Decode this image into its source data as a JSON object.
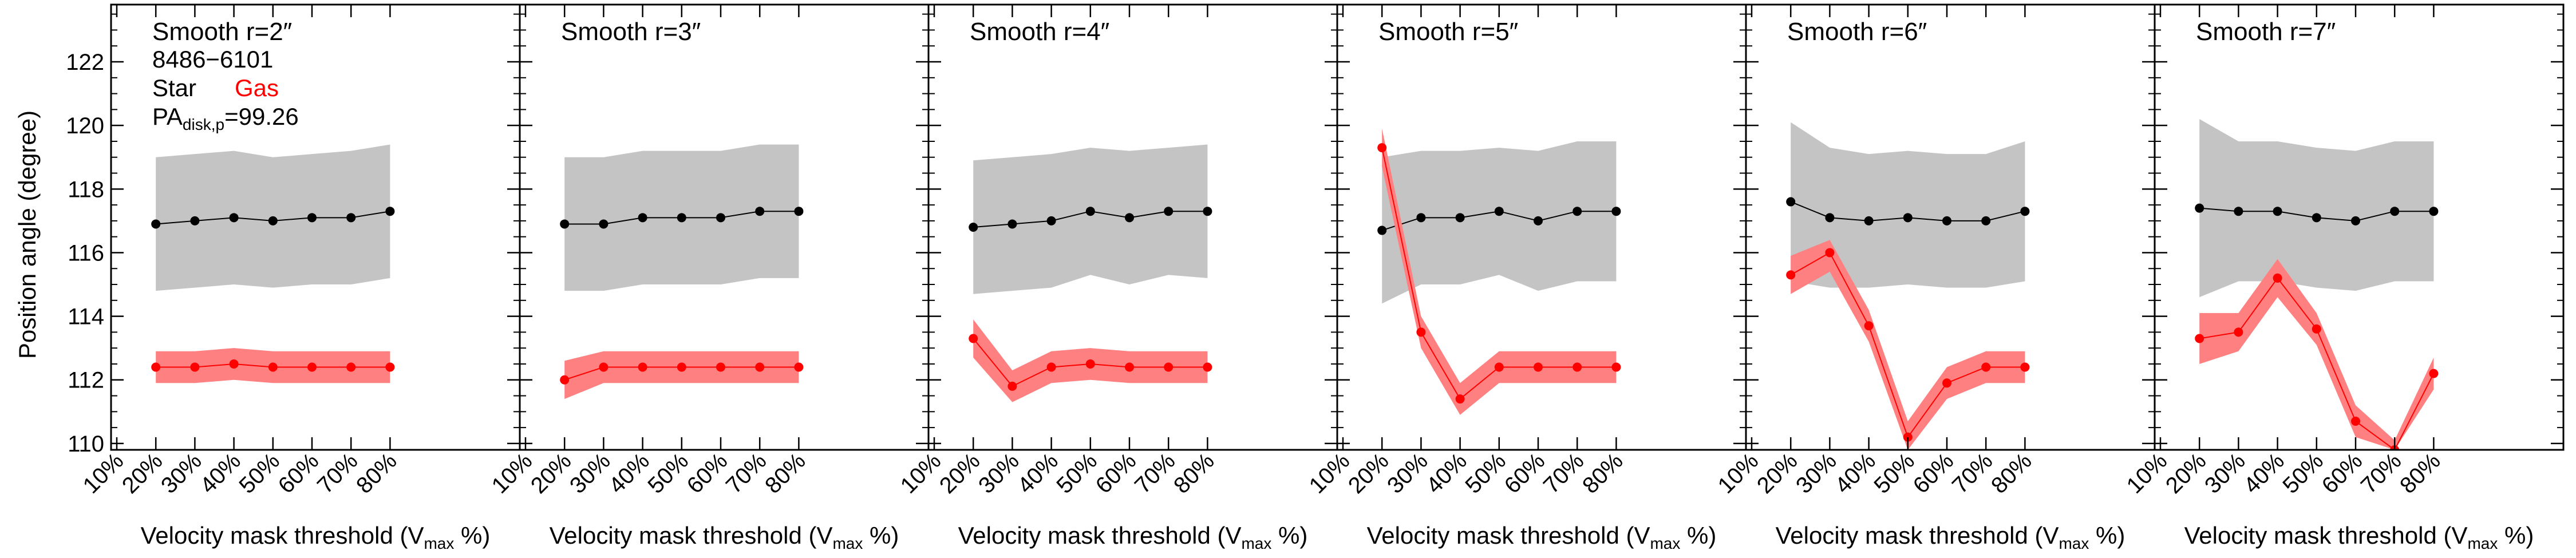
{
  "figure": {
    "ylabel": "Position angle (degree)",
    "info": {
      "object_id": "8486−6101",
      "star_label": "Star",
      "gas_label": "Gas",
      "pa_prefix": "PA",
      "pa_sub": "disk,p",
      "pa_value": "=99.26"
    },
    "xlabel_prefix": "Velocity mask threshold (V",
    "xlabel_sub": "max",
    "xlabel_suffix": " %)"
  },
  "colors": {
    "star_line": "#000000",
    "star_band": "#c4c4c4",
    "gas_line": "#ff0000",
    "gas_band": "#ff8080",
    "gas_label": "#ff0000"
  },
  "chart_data": [
    {
      "type": "line",
      "title": "Smooth r=2″",
      "categories": [
        "10%",
        "20%",
        "30%",
        "40%",
        "50%",
        "60%",
        "70%",
        "80%"
      ],
      "ylim": [
        109.8,
        123.8
      ],
      "yticks": [
        110,
        112,
        114,
        116,
        118,
        120,
        122
      ],
      "series": [
        {
          "name": "Star",
          "x": [
            20,
            30,
            40,
            50,
            60,
            70,
            80
          ],
          "values": [
            116.9,
            117.0,
            117.1,
            117.0,
            117.1,
            117.1,
            117.3
          ],
          "band_upper": [
            119.0,
            119.1,
            119.2,
            119.0,
            119.1,
            119.2,
            119.4
          ],
          "band_lower": [
            114.8,
            114.9,
            115.0,
            114.9,
            115.0,
            115.0,
            115.2
          ]
        },
        {
          "name": "Gas",
          "x": [
            20,
            30,
            40,
            50,
            60,
            70,
            80
          ],
          "values": [
            112.4,
            112.4,
            112.5,
            112.4,
            112.4,
            112.4,
            112.4
          ],
          "band_upper": [
            112.9,
            112.9,
            113.0,
            112.9,
            112.9,
            112.9,
            112.9
          ],
          "band_lower": [
            111.9,
            111.9,
            112.0,
            111.9,
            111.9,
            111.9,
            111.9
          ]
        }
      ]
    },
    {
      "type": "line",
      "title": "Smooth r=3″",
      "categories": [
        "10%",
        "20%",
        "30%",
        "40%",
        "50%",
        "60%",
        "70%",
        "80%"
      ],
      "ylim": [
        109.8,
        123.8
      ],
      "yticks": [
        110,
        112,
        114,
        116,
        118,
        120,
        122
      ],
      "series": [
        {
          "name": "Star",
          "x": [
            20,
            30,
            40,
            50,
            60,
            70,
            80
          ],
          "values": [
            116.9,
            116.9,
            117.1,
            117.1,
            117.1,
            117.3,
            117.3
          ],
          "band_upper": [
            119.0,
            119.0,
            119.2,
            119.2,
            119.2,
            119.4,
            119.4
          ],
          "band_lower": [
            114.8,
            114.8,
            115.0,
            115.0,
            115.0,
            115.2,
            115.2
          ]
        },
        {
          "name": "Gas",
          "x": [
            20,
            30,
            40,
            50,
            60,
            70,
            80
          ],
          "values": [
            112.0,
            112.4,
            112.4,
            112.4,
            112.4,
            112.4,
            112.4
          ],
          "band_upper": [
            112.6,
            112.9,
            112.9,
            112.9,
            112.9,
            112.9,
            112.9
          ],
          "band_lower": [
            111.4,
            111.9,
            111.9,
            111.9,
            111.9,
            111.9,
            111.9
          ]
        }
      ]
    },
    {
      "type": "line",
      "title": "Smooth r=4″",
      "categories": [
        "10%",
        "20%",
        "30%",
        "40%",
        "50%",
        "60%",
        "70%",
        "80%"
      ],
      "ylim": [
        109.8,
        123.8
      ],
      "yticks": [
        110,
        112,
        114,
        116,
        118,
        120,
        122
      ],
      "series": [
        {
          "name": "Star",
          "x": [
            20,
            30,
            40,
            50,
            60,
            70,
            80
          ],
          "values": [
            116.8,
            116.9,
            117.0,
            117.3,
            117.1,
            117.3,
            117.3
          ],
          "band_upper": [
            118.9,
            119.0,
            119.1,
            119.3,
            119.2,
            119.3,
            119.4
          ],
          "band_lower": [
            114.7,
            114.8,
            114.9,
            115.3,
            115.0,
            115.3,
            115.2
          ]
        },
        {
          "name": "Gas",
          "x": [
            20,
            30,
            40,
            50,
            60,
            70,
            80
          ],
          "values": [
            113.3,
            111.8,
            112.4,
            112.5,
            112.4,
            112.4,
            112.4
          ],
          "band_upper": [
            113.9,
            112.3,
            112.9,
            113.0,
            112.9,
            112.9,
            112.9
          ],
          "band_lower": [
            112.7,
            111.3,
            111.9,
            112.0,
            111.9,
            111.9,
            111.9
          ]
        }
      ]
    },
    {
      "type": "line",
      "title": "Smooth r=5″",
      "categories": [
        "10%",
        "20%",
        "30%",
        "40%",
        "50%",
        "60%",
        "70%",
        "80%"
      ],
      "ylim": [
        109.8,
        123.8
      ],
      "yticks": [
        110,
        112,
        114,
        116,
        118,
        120,
        122
      ],
      "series": [
        {
          "name": "Star",
          "x": [
            20,
            30,
            40,
            50,
            60,
            70,
            80
          ],
          "values": [
            116.7,
            117.1,
            117.1,
            117.3,
            117.0,
            117.3,
            117.3
          ],
          "band_upper": [
            119.0,
            119.2,
            119.2,
            119.3,
            119.2,
            119.5,
            119.5
          ],
          "band_lower": [
            114.4,
            115.0,
            115.0,
            115.3,
            114.8,
            115.1,
            115.1
          ]
        },
        {
          "name": "Gas",
          "x": [
            20,
            30,
            40,
            50,
            60,
            70,
            80
          ],
          "values": [
            119.3,
            113.5,
            111.4,
            112.4,
            112.4,
            112.4,
            112.4
          ],
          "band_upper": [
            119.9,
            114.0,
            111.9,
            112.9,
            112.9,
            112.9,
            112.9
          ],
          "band_lower": [
            118.7,
            113.0,
            110.9,
            111.9,
            111.9,
            111.9,
            111.9
          ]
        }
      ]
    },
    {
      "type": "line",
      "title": "Smooth r=6″",
      "categories": [
        "10%",
        "20%",
        "30%",
        "40%",
        "50%",
        "60%",
        "70%",
        "80%"
      ],
      "ylim": [
        109.8,
        123.8
      ],
      "yticks": [
        110,
        112,
        114,
        116,
        118,
        120,
        122
      ],
      "series": [
        {
          "name": "Star",
          "x": [
            20,
            30,
            40,
            50,
            60,
            70,
            80
          ],
          "values": [
            117.6,
            117.1,
            117.0,
            117.1,
            117.0,
            117.0,
            117.3
          ],
          "band_upper": [
            120.1,
            119.3,
            119.1,
            119.2,
            119.1,
            119.1,
            119.5
          ],
          "band_lower": [
            115.1,
            114.9,
            114.9,
            115.0,
            114.9,
            114.9,
            115.1
          ]
        },
        {
          "name": "Gas",
          "x": [
            20,
            30,
            40,
            50,
            60,
            70,
            80
          ],
          "values": [
            115.3,
            116.0,
            113.7,
            110.2,
            111.9,
            112.4,
            112.4
          ],
          "band_upper": [
            115.9,
            116.4,
            114.2,
            110.7,
            112.4,
            112.9,
            112.9
          ],
          "band_lower": [
            114.7,
            115.4,
            113.2,
            109.8,
            111.4,
            111.9,
            111.9
          ]
        }
      ]
    },
    {
      "type": "line",
      "title": "Smooth r=7″",
      "categories": [
        "10%",
        "20%",
        "30%",
        "40%",
        "50%",
        "60%",
        "70%",
        "80%"
      ],
      "ylim": [
        109.8,
        123.8
      ],
      "yticks": [
        110,
        112,
        114,
        116,
        118,
        120,
        122
      ],
      "series": [
        {
          "name": "Star",
          "x": [
            20,
            30,
            40,
            50,
            60,
            70,
            80
          ],
          "values": [
            117.4,
            117.3,
            117.3,
            117.1,
            117.0,
            117.3,
            117.3
          ],
          "band_upper": [
            120.2,
            119.5,
            119.5,
            119.3,
            119.2,
            119.5,
            119.5
          ],
          "band_lower": [
            114.6,
            115.1,
            115.1,
            114.9,
            114.8,
            115.1,
            115.1
          ]
        },
        {
          "name": "Gas",
          "x": [
            20,
            30,
            40,
            50,
            60,
            70,
            80
          ],
          "values": [
            113.3,
            113.5,
            115.2,
            113.6,
            110.7,
            109.8,
            112.2
          ],
          "band_upper": [
            114.1,
            114.1,
            115.8,
            114.1,
            111.2,
            110.1,
            112.7
          ],
          "band_lower": [
            112.5,
            112.9,
            114.6,
            113.1,
            110.2,
            109.8,
            111.7
          ]
        }
      ]
    }
  ]
}
